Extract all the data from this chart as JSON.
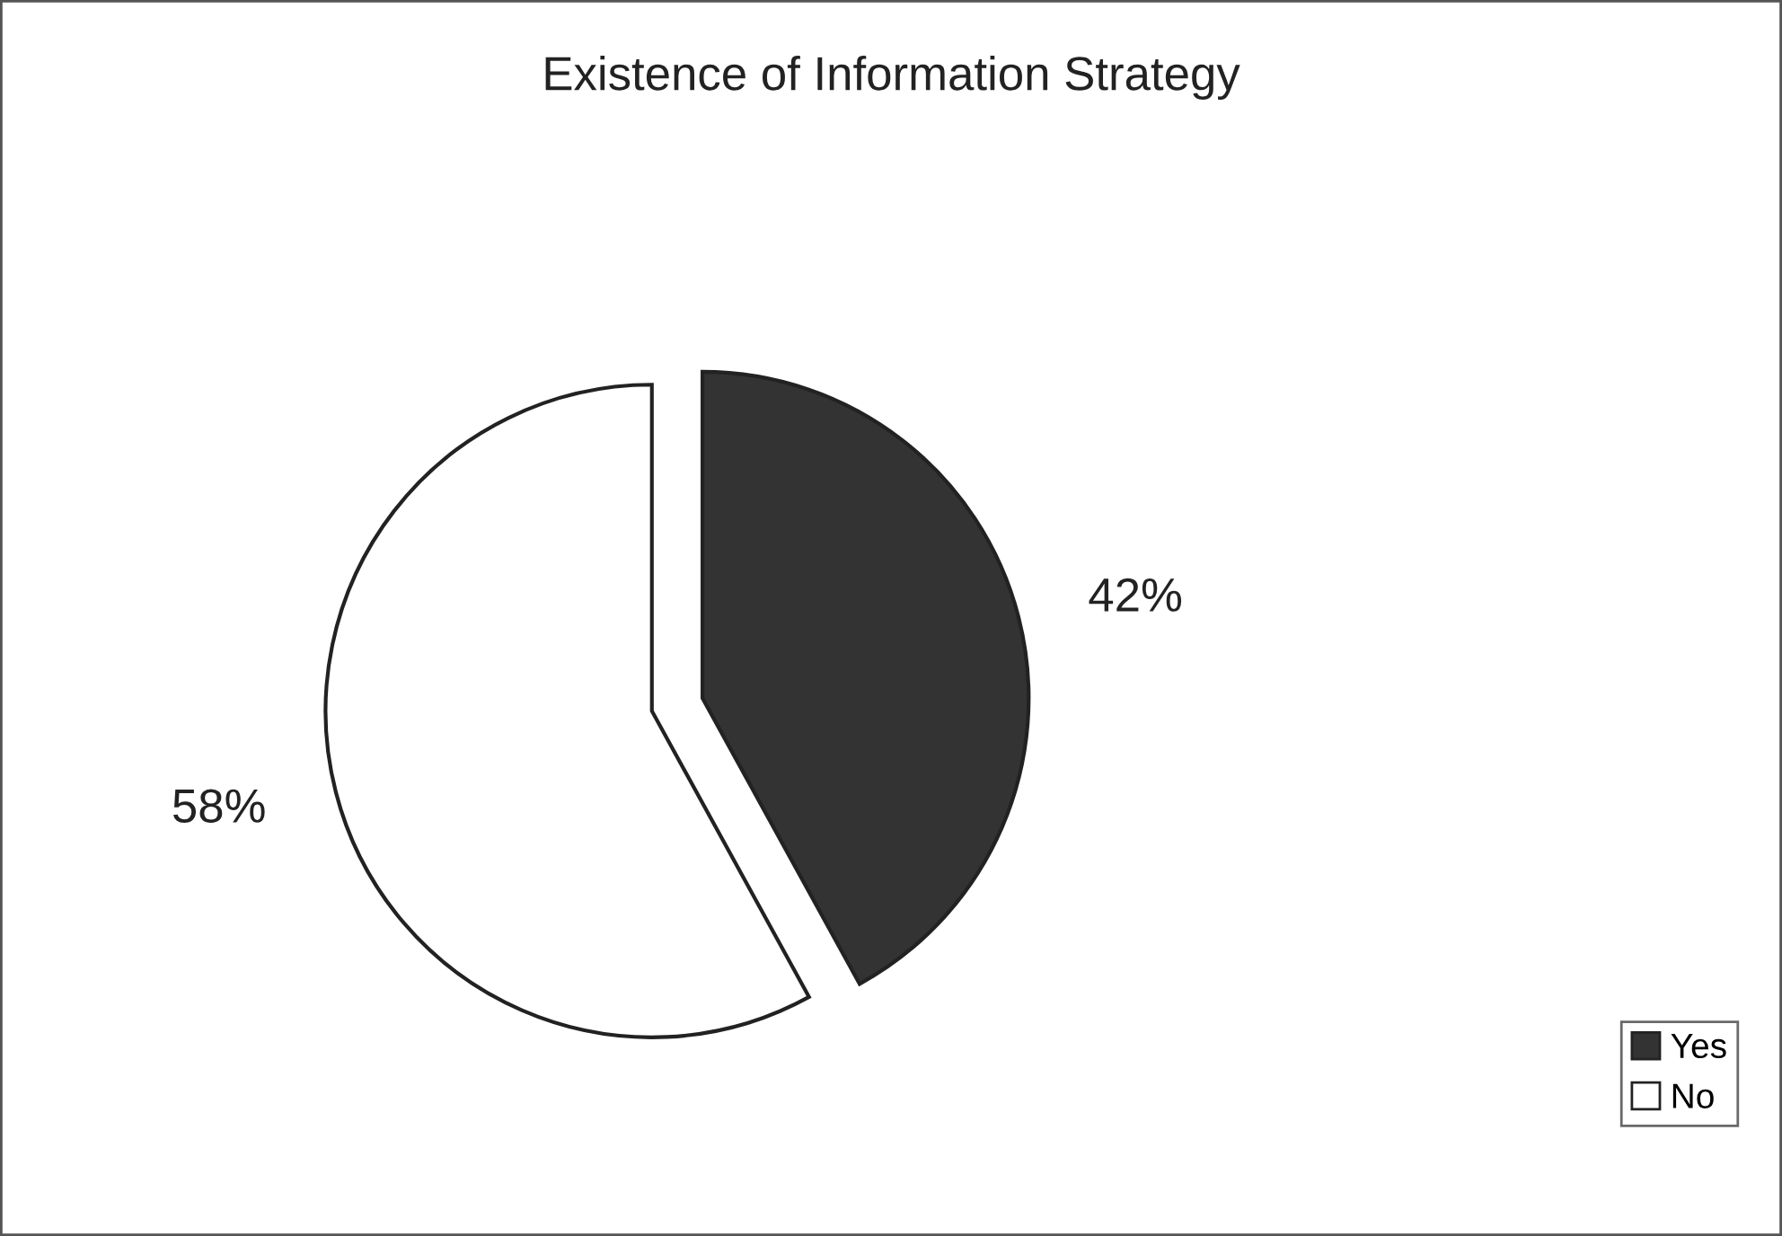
{
  "chart_data": {
    "type": "pie",
    "title": "Existence of Information Strategy",
    "categories": [
      "Yes",
      "No"
    ],
    "values": [
      42,
      58
    ],
    "colors": [
      "#333333",
      "#ffffff"
    ],
    "value_labels": [
      "42%",
      "58%"
    ],
    "legend": "bottom right"
  }
}
